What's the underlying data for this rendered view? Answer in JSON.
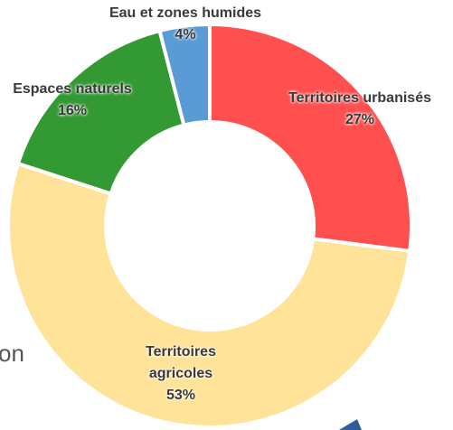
{
  "chart_data": {
    "type": "donut",
    "categories": [
      "Territoires urbanisés",
      "Territoires agricoles",
      "Espaces naturels",
      "Eau et zones humides"
    ],
    "values": [
      27,
      53,
      16,
      4
    ],
    "value_labels": [
      "27%",
      "53%",
      "16%",
      "4%"
    ],
    "colors": [
      "#ff5050",
      "#ffe399",
      "#339933",
      "#5b9bd5"
    ]
  },
  "background_text": "on"
}
